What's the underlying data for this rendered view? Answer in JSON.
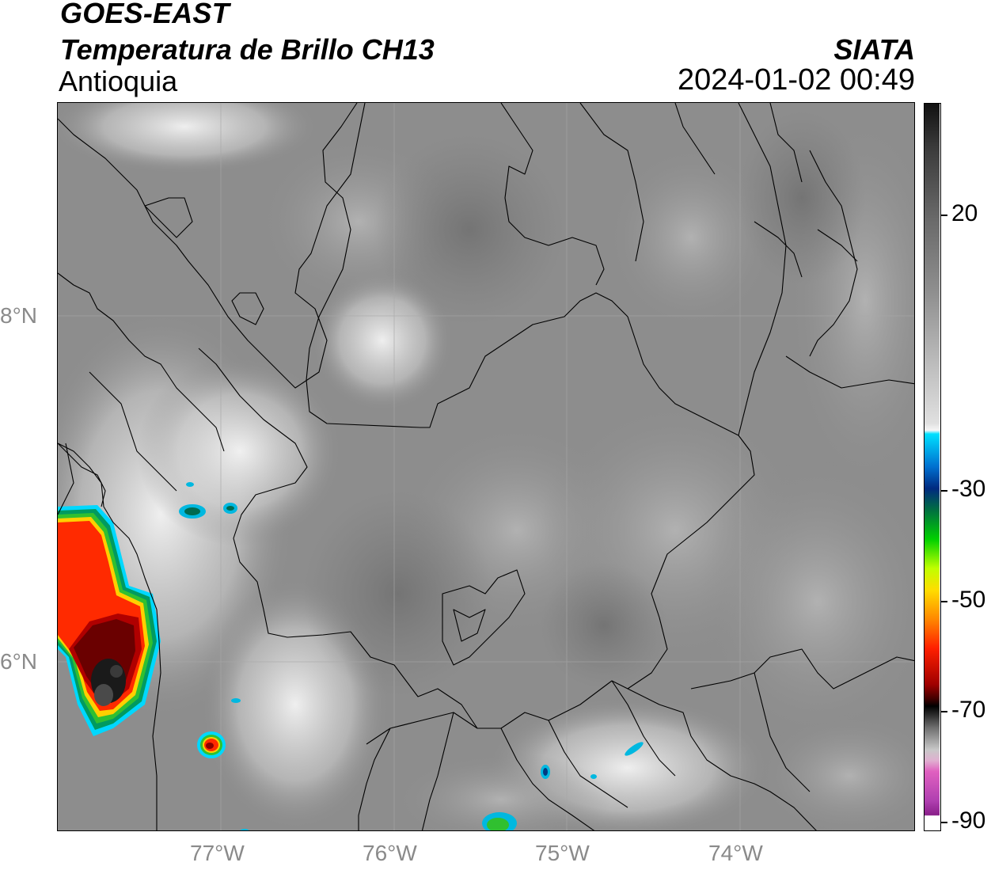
{
  "header": {
    "satellite": "GOES-EAST",
    "product": "Temperatura de Brillo CH13",
    "region": "Antioquia",
    "brand": "SIATA",
    "timestamp": "2024-01-02 00:49"
  },
  "axes": {
    "lat_labels": [
      "8°N",
      "6°N"
    ],
    "lon_labels": [
      "77°W",
      "76°W",
      "75°W",
      "74°W"
    ]
  },
  "colorbar": {
    "ticks": [
      "20",
      "-30",
      "-50",
      "-70",
      "-90"
    ],
    "range": [
      -90,
      40
    ],
    "colors": [
      "#ffffff",
      "#9a1f9a",
      "#e060c0",
      "#d8d8d8",
      "#000000",
      "#8b0000",
      "#ff2000",
      "#ffcc00",
      "#00d000",
      "#003080",
      "#00e0ff",
      "#f5f5f5",
      "#a0a0a0",
      "#111111"
    ]
  },
  "map": {
    "base_color": "#8a8a8a",
    "storm_colors": [
      "#00e0ff",
      "#00b050",
      "#ffff00",
      "#ff2000",
      "#8b0000",
      "#111111"
    ]
  }
}
